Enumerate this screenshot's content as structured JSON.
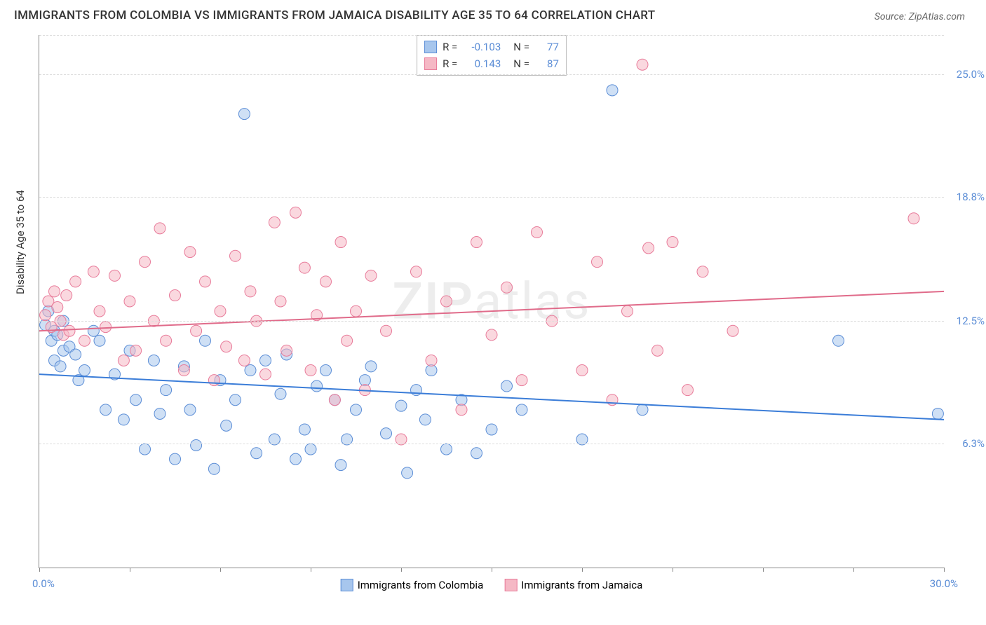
{
  "title": "IMMIGRANTS FROM COLOMBIA VS IMMIGRANTS FROM JAMAICA DISABILITY AGE 35 TO 64 CORRELATION CHART",
  "source": "Source: ZipAtlas.com",
  "y_axis_label": "Disability Age 35 to 64",
  "watermark": "ZIPatlas",
  "chart": {
    "type": "scatter",
    "xlim": [
      0,
      30
    ],
    "ylim": [
      0,
      27
    ],
    "y_ticks": [
      6.3,
      12.5,
      18.8,
      25.0
    ],
    "y_tick_labels": [
      "6.3%",
      "12.5%",
      "18.8%",
      "25.0%"
    ],
    "x_ticks": [
      0,
      3,
      6,
      9,
      12,
      15,
      18,
      21,
      24,
      27,
      30
    ],
    "x_range_labels": {
      "min": "0.0%",
      "max": "30.0%"
    },
    "background_color": "#ffffff",
    "grid_color": "#dddddd",
    "border_color": "#888888"
  },
  "series": [
    {
      "name": "Immigrants from Colombia",
      "color_fill": "#a7c6ed",
      "color_stroke": "#5b8dd6",
      "fill_opacity": 0.55,
      "marker_radius": 8,
      "R": "-0.103",
      "N": "77",
      "trend": {
        "x1": 0,
        "y1": 9.8,
        "x2": 30,
        "y2": 7.5,
        "color": "#3b7dd8",
        "width": 2
      },
      "points": [
        [
          0.2,
          12.3
        ],
        [
          0.3,
          13.0
        ],
        [
          0.4,
          11.5
        ],
        [
          0.5,
          12.0
        ],
        [
          0.5,
          10.5
        ],
        [
          0.6,
          11.8
        ],
        [
          0.7,
          10.2
        ],
        [
          0.8,
          12.5
        ],
        [
          0.8,
          11.0
        ],
        [
          1.0,
          11.2
        ],
        [
          1.2,
          10.8
        ],
        [
          1.3,
          9.5
        ],
        [
          1.5,
          10.0
        ],
        [
          1.8,
          12.0
        ],
        [
          2.0,
          11.5
        ],
        [
          2.2,
          8.0
        ],
        [
          2.5,
          9.8
        ],
        [
          2.8,
          7.5
        ],
        [
          3.0,
          11.0
        ],
        [
          3.2,
          8.5
        ],
        [
          3.5,
          6.0
        ],
        [
          3.8,
          10.5
        ],
        [
          4.0,
          7.8
        ],
        [
          4.2,
          9.0
        ],
        [
          4.5,
          5.5
        ],
        [
          4.8,
          10.2
        ],
        [
          5.0,
          8.0
        ],
        [
          5.2,
          6.2
        ],
        [
          5.5,
          11.5
        ],
        [
          5.8,
          5.0
        ],
        [
          6.0,
          9.5
        ],
        [
          6.2,
          7.2
        ],
        [
          6.5,
          8.5
        ],
        [
          6.8,
          23.0
        ],
        [
          7.0,
          10.0
        ],
        [
          7.2,
          5.8
        ],
        [
          7.5,
          10.5
        ],
        [
          7.8,
          6.5
        ],
        [
          8.0,
          8.8
        ],
        [
          8.2,
          10.8
        ],
        [
          8.5,
          5.5
        ],
        [
          8.8,
          7.0
        ],
        [
          9.0,
          6.0
        ],
        [
          9.2,
          9.2
        ],
        [
          9.5,
          10.0
        ],
        [
          9.8,
          8.5
        ],
        [
          10.0,
          5.2
        ],
        [
          10.2,
          6.5
        ],
        [
          10.5,
          8.0
        ],
        [
          10.8,
          9.5
        ],
        [
          11.0,
          10.2
        ],
        [
          11.5,
          6.8
        ],
        [
          12.0,
          8.2
        ],
        [
          12.2,
          4.8
        ],
        [
          12.5,
          9.0
        ],
        [
          12.8,
          7.5
        ],
        [
          13.0,
          10.0
        ],
        [
          13.5,
          6.0
        ],
        [
          14.0,
          8.5
        ],
        [
          14.5,
          5.8
        ],
        [
          15.0,
          7.0
        ],
        [
          15.5,
          9.2
        ],
        [
          16.0,
          8.0
        ],
        [
          18.0,
          6.5
        ],
        [
          19.0,
          24.2
        ],
        [
          20.0,
          8.0
        ],
        [
          26.5,
          11.5
        ],
        [
          29.8,
          7.8
        ]
      ]
    },
    {
      "name": "Immigrants from Jamaica",
      "color_fill": "#f5b8c5",
      "color_stroke": "#e87b9a",
      "fill_opacity": 0.55,
      "marker_radius": 8,
      "R": "0.143",
      "N": "87",
      "trend": {
        "x1": 0,
        "y1": 12.0,
        "x2": 30,
        "y2": 14.0,
        "color": "#e06b8a",
        "width": 2
      },
      "points": [
        [
          0.2,
          12.8
        ],
        [
          0.3,
          13.5
        ],
        [
          0.4,
          12.2
        ],
        [
          0.5,
          14.0
        ],
        [
          0.6,
          13.2
        ],
        [
          0.7,
          12.5
        ],
        [
          0.8,
          11.8
        ],
        [
          0.9,
          13.8
        ],
        [
          1.0,
          12.0
        ],
        [
          1.2,
          14.5
        ],
        [
          1.5,
          11.5
        ],
        [
          1.8,
          15.0
        ],
        [
          2.0,
          13.0
        ],
        [
          2.2,
          12.2
        ],
        [
          2.5,
          14.8
        ],
        [
          2.8,
          10.5
        ],
        [
          3.0,
          13.5
        ],
        [
          3.2,
          11.0
        ],
        [
          3.5,
          15.5
        ],
        [
          3.8,
          12.5
        ],
        [
          4.0,
          17.2
        ],
        [
          4.2,
          11.5
        ],
        [
          4.5,
          13.8
        ],
        [
          4.8,
          10.0
        ],
        [
          5.0,
          16.0
        ],
        [
          5.2,
          12.0
        ],
        [
          5.5,
          14.5
        ],
        [
          5.8,
          9.5
        ],
        [
          6.0,
          13.0
        ],
        [
          6.2,
          11.2
        ],
        [
          6.5,
          15.8
        ],
        [
          6.8,
          10.5
        ],
        [
          7.0,
          14.0
        ],
        [
          7.2,
          12.5
        ],
        [
          7.5,
          9.8
        ],
        [
          7.8,
          17.5
        ],
        [
          8.0,
          13.5
        ],
        [
          8.2,
          11.0
        ],
        [
          8.5,
          18.0
        ],
        [
          8.8,
          15.2
        ],
        [
          9.0,
          10.0
        ],
        [
          9.2,
          12.8
        ],
        [
          9.5,
          14.5
        ],
        [
          9.8,
          8.5
        ],
        [
          10.0,
          16.5
        ],
        [
          10.2,
          11.5
        ],
        [
          10.5,
          13.0
        ],
        [
          10.8,
          9.0
        ],
        [
          11.0,
          14.8
        ],
        [
          11.5,
          12.0
        ],
        [
          12.0,
          6.5
        ],
        [
          12.5,
          15.0
        ],
        [
          13.0,
          10.5
        ],
        [
          13.5,
          13.5
        ],
        [
          14.0,
          8.0
        ],
        [
          14.5,
          16.5
        ],
        [
          15.0,
          11.8
        ],
        [
          15.5,
          14.2
        ],
        [
          16.0,
          9.5
        ],
        [
          16.5,
          17.0
        ],
        [
          17.0,
          12.5
        ],
        [
          18.0,
          10.0
        ],
        [
          18.5,
          15.5
        ],
        [
          19.0,
          8.5
        ],
        [
          19.5,
          13.0
        ],
        [
          20.0,
          25.5
        ],
        [
          20.2,
          16.2
        ],
        [
          20.5,
          11.0
        ],
        [
          21.0,
          16.5
        ],
        [
          21.5,
          9.0
        ],
        [
          22.0,
          15.0
        ],
        [
          23.0,
          12.0
        ],
        [
          29.0,
          17.7
        ]
      ]
    }
  ],
  "bottom_legend": [
    {
      "label": "Immigrants from Colombia",
      "fill": "#a7c6ed",
      "stroke": "#5b8dd6"
    },
    {
      "label": "Immigrants from Jamaica",
      "fill": "#f5b8c5",
      "stroke": "#e87b9a"
    }
  ]
}
